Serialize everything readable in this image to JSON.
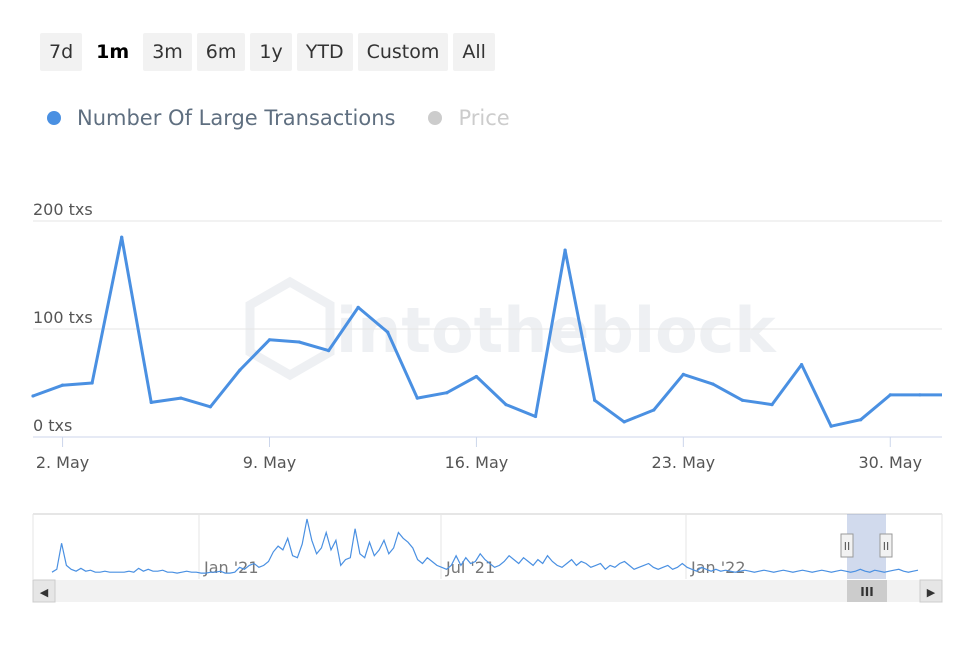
{
  "range_selector": {
    "buttons": [
      "7d",
      "1m",
      "3m",
      "6m",
      "1y",
      "YTD",
      "Custom",
      "All"
    ],
    "active": "1m"
  },
  "legend": {
    "items": [
      {
        "label": "Number Of Large Transactions",
        "color": "#4a90e2",
        "active": true
      },
      {
        "label": "Price",
        "color": "#cccccc",
        "active": false
      }
    ]
  },
  "watermark": "intotheblock",
  "chart_data": {
    "type": "line",
    "x_start": "1 May",
    "x": [
      1,
      2,
      3,
      4,
      5,
      6,
      7,
      8,
      9,
      10,
      11,
      12,
      13,
      14,
      15,
      16,
      17,
      18,
      19,
      20,
      21,
      22,
      23,
      24,
      25,
      26,
      27,
      28,
      29,
      30,
      31
    ],
    "series": [
      {
        "name": "Number Of Large Transactions",
        "color": "#4a90e2",
        "values": [
          38,
          48,
          50,
          185,
          32,
          36,
          28,
          62,
          90,
          88,
          80,
          120,
          97,
          36,
          41,
          56,
          30,
          19,
          173,
          34,
          14,
          25,
          58,
          49,
          34,
          30,
          67,
          10,
          16,
          39,
          39
        ]
      }
    ],
    "yticks": [
      {
        "value": 0,
        "label": "0 txs"
      },
      {
        "value": 100,
        "label": "100 txs"
      },
      {
        "value": 200,
        "label": "200 txs"
      }
    ],
    "xticks": [
      {
        "day": 2,
        "label": "2. May"
      },
      {
        "day": 9,
        "label": "9. May"
      },
      {
        "day": 16,
        "label": "16. May"
      },
      {
        "day": 23,
        "label": "23. May"
      },
      {
        "day": 30,
        "label": "30. May"
      }
    ],
    "ylim": [
      0,
      200
    ],
    "grid": true
  },
  "navigator": {
    "labels": [
      "Jan '21",
      "Jul '21",
      "Jan '22"
    ],
    "scroll_left_arrow": "◀",
    "scroll_right_arrow": "▶",
    "scroll_thumb_grip": "III",
    "handle_grip": "II",
    "series_values": [
      5,
      8,
      35,
      12,
      8,
      6,
      9,
      6,
      7,
      5,
      5,
      6,
      5,
      5,
      5,
      5,
      6,
      5,
      9,
      6,
      8,
      6,
      6,
      7,
      5,
      5,
      4,
      5,
      6,
      5,
      5,
      4,
      4,
      5,
      5,
      6,
      4,
      4,
      5,
      10,
      8,
      12,
      14,
      10,
      12,
      16,
      26,
      32,
      28,
      40,
      22,
      20,
      34,
      60,
      38,
      24,
      30,
      46,
      28,
      38,
      12,
      18,
      20,
      50,
      24,
      20,
      36,
      22,
      28,
      38,
      24,
      30,
      46,
      40,
      36,
      30,
      18,
      14,
      20,
      16,
      12,
      10,
      8,
      12,
      22,
      12,
      20,
      14,
      16,
      24,
      18,
      14,
      10,
      12,
      16,
      22,
      18,
      14,
      20,
      16,
      12,
      18,
      14,
      22,
      16,
      12,
      10,
      14,
      18,
      12,
      16,
      14,
      10,
      12,
      14,
      8,
      12,
      10,
      14,
      16,
      12,
      8,
      10,
      12,
      14,
      10,
      8,
      10,
      12,
      8,
      10,
      14,
      10,
      8,
      6,
      10,
      8,
      6,
      8,
      6,
      7,
      6,
      5,
      6,
      7,
      6,
      5,
      6,
      7,
      6,
      5,
      6,
      7,
      6,
      5,
      6,
      7,
      6,
      5,
      6,
      7,
      6,
      5,
      6,
      7,
      6,
      5,
      6,
      8,
      6,
      5,
      7,
      6,
      5,
      6,
      7,
      8,
      6,
      5,
      6,
      7
    ]
  }
}
